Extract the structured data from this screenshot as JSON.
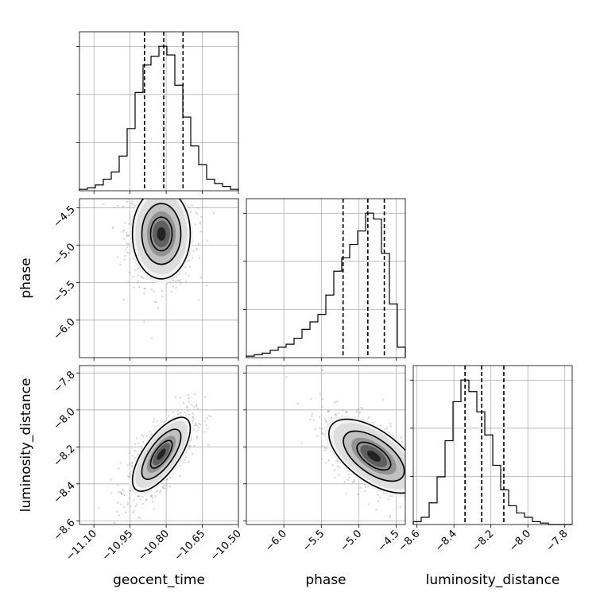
{
  "chart_data": {
    "type": "corner",
    "parameters": [
      "geocent_time",
      "phase",
      "luminosity_distance"
    ],
    "axes": {
      "geocent_time": {
        "label": "geocent_time",
        "range": [
          -11.16,
          -10.5
        ],
        "ticks": [
          -11.1,
          -10.95,
          -10.8,
          -10.65,
          -10.5
        ],
        "tick_labels": [
          "−11.10",
          "−10.95",
          "−10.80",
          "−10.65",
          "−10.50"
        ]
      },
      "phase": {
        "label": "phase",
        "range": [
          -6.5,
          -4.38
        ],
        "ticks": [
          -6.0,
          -5.5,
          -5.0,
          -4.5
        ],
        "tick_labels": [
          "−6.0",
          "−5.5",
          "−5.0",
          "−4.5"
        ]
      },
      "luminosity_distance": {
        "label": "luminosity_distance",
        "range": [
          -8.62,
          -7.76
        ],
        "ticks": [
          -8.6,
          -8.4,
          -8.2,
          -8.0,
          -7.8
        ],
        "tick_labels": [
          "−8.6",
          "−8.4",
          "−8.2",
          "−8.0",
          "−7.8"
        ]
      }
    },
    "marginals": [
      {
        "param": "geocent_time",
        "bin_edges_range": [
          -11.16,
          -10.5
        ],
        "bins": 20,
        "counts": [
          1,
          2,
          4,
          8,
          13,
          24,
          43,
          68,
          87,
          93,
          100,
          94,
          73,
          51,
          31,
          18,
          8,
          5,
          3,
          1
        ],
        "quantiles": [
          -10.89,
          -10.81,
          -10.73
        ]
      },
      {
        "param": "phase",
        "bin_edges_range": [
          -6.5,
          -4.38
        ],
        "bins": 20,
        "counts": [
          1,
          2,
          3,
          5,
          7,
          9,
          13,
          19,
          24,
          29,
          42,
          58,
          67,
          76,
          85,
          97,
          93,
          70,
          36,
          7
        ],
        "quantiles": [
          -5.21,
          -4.88,
          -4.66
        ]
      },
      {
        "param": "luminosity_distance",
        "bin_edges_range": [
          -8.62,
          -7.76
        ],
        "bins": 20,
        "counts": [
          2,
          5,
          15,
          33,
          58,
          85,
          100,
          92,
          78,
          62,
          41,
          24,
          13,
          8,
          5,
          2,
          1,
          0,
          0,
          0
        ],
        "quantiles": [
          -8.34,
          -8.25,
          -8.13
        ]
      }
    ],
    "joint_panels": [
      {
        "x": "geocent_time",
        "y": "phase",
        "mean": [
          -10.82,
          -4.85
        ],
        "sd": [
          0.06,
          0.3
        ],
        "correlation": 0.0
      },
      {
        "x": "geocent_time",
        "y": "luminosity_distance",
        "mean": [
          -10.82,
          -8.24
        ],
        "sd": [
          0.06,
          0.1
        ],
        "correlation": 0.7
      },
      {
        "x": "phase",
        "y": "luminosity_distance",
        "mean": [
          -4.8,
          -8.25
        ],
        "sd": [
          0.3,
          0.1
        ],
        "correlation": -0.6
      }
    ],
    "grid": true,
    "colors": {
      "points": "#9a9a9a",
      "contour": "#000000",
      "density": "#000000",
      "quantile_line": "#000000"
    }
  }
}
